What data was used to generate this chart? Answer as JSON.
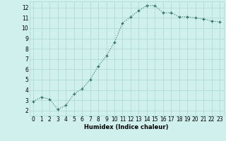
{
  "x": [
    0,
    1,
    2,
    3,
    4,
    5,
    6,
    7,
    8,
    9,
    10,
    11,
    12,
    13,
    14,
    15,
    16,
    17,
    18,
    19,
    20,
    21,
    22,
    23
  ],
  "y": [
    2.9,
    3.3,
    3.1,
    2.1,
    2.5,
    3.6,
    4.1,
    5.0,
    6.3,
    7.3,
    8.6,
    10.5,
    11.1,
    11.7,
    12.2,
    12.2,
    11.5,
    11.5,
    11.1,
    11.1,
    11.0,
    10.9,
    10.7,
    10.6
  ],
  "xlabel": "Humidex (Indice chaleur)",
  "ylim": [
    1.5,
    12.6
  ],
  "xlim": [
    -0.5,
    23.5
  ],
  "bg_color": "#cff0ec",
  "grid_color": "#aad8d0",
  "line_color": "#2d6e63",
  "marker_color": "#2d6e63",
  "yticks": [
    2,
    3,
    4,
    5,
    6,
    7,
    8,
    9,
    10,
    11,
    12
  ],
  "xticks": [
    0,
    1,
    2,
    3,
    4,
    5,
    6,
    7,
    8,
    9,
    10,
    11,
    12,
    13,
    14,
    15,
    16,
    17,
    18,
    19,
    20,
    21,
    22,
    23
  ],
  "xlabel_fontsize": 6.0,
  "tick_fontsize": 5.5
}
